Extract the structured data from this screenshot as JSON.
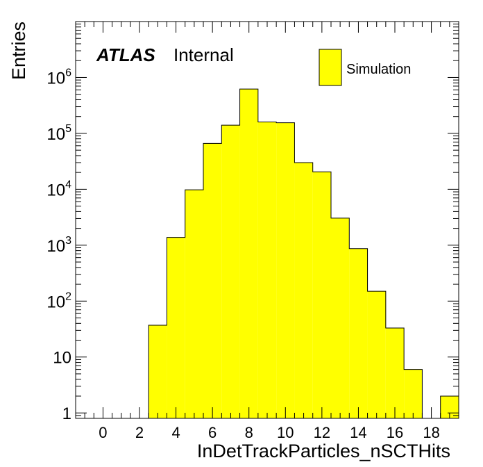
{
  "chart_data": {
    "type": "bar",
    "style": "histogram",
    "xlabel": "InDetTrackParticles_nSCTHits",
    "ylabel": "Entries",
    "log_y": true,
    "xlim": [
      -1.5,
      19.5
    ],
    "ylim": [
      0.8,
      10000000
    ],
    "x_ticks": [
      0,
      2,
      4,
      6,
      8,
      10,
      12,
      14,
      16,
      18
    ],
    "y_ticks": [
      {
        "value": 1,
        "base": "1",
        "exp": ""
      },
      {
        "value": 10,
        "base": "10",
        "exp": ""
      },
      {
        "value": 100,
        "base": "10",
        "exp": "2"
      },
      {
        "value": 1000,
        "base": "10",
        "exp": "3"
      },
      {
        "value": 10000,
        "base": "10",
        "exp": "4"
      },
      {
        "value": 100000,
        "base": "10",
        "exp": "5"
      },
      {
        "value": 1000000,
        "base": "10",
        "exp": "6"
      }
    ],
    "series": [
      {
        "name": "Simulation",
        "color": "#ffff00",
        "bins": [
          {
            "x": 3,
            "value": 37
          },
          {
            "x": 4,
            "value": 1380
          },
          {
            "x": 5,
            "value": 9800
          },
          {
            "x": 6,
            "value": 66000
          },
          {
            "x": 7,
            "value": 140000
          },
          {
            "x": 8,
            "value": 620000
          },
          {
            "x": 9,
            "value": 160000
          },
          {
            "x": 10,
            "value": 155000
          },
          {
            "x": 11,
            "value": 30000
          },
          {
            "x": 12,
            "value": 20500
          },
          {
            "x": 13,
            "value": 3050
          },
          {
            "x": 14,
            "value": 870
          },
          {
            "x": 15,
            "value": 150
          },
          {
            "x": 16,
            "value": 33
          },
          {
            "x": 17,
            "value": 6
          },
          {
            "x": 18,
            "value": 0
          },
          {
            "x": 19,
            "value": 2
          }
        ]
      }
    ]
  },
  "atlas_label": "ATLAS",
  "atlas_status": "Internal",
  "legend_entry": "Simulation",
  "colors": {
    "fill": "#ffff00",
    "line": "#000000"
  }
}
